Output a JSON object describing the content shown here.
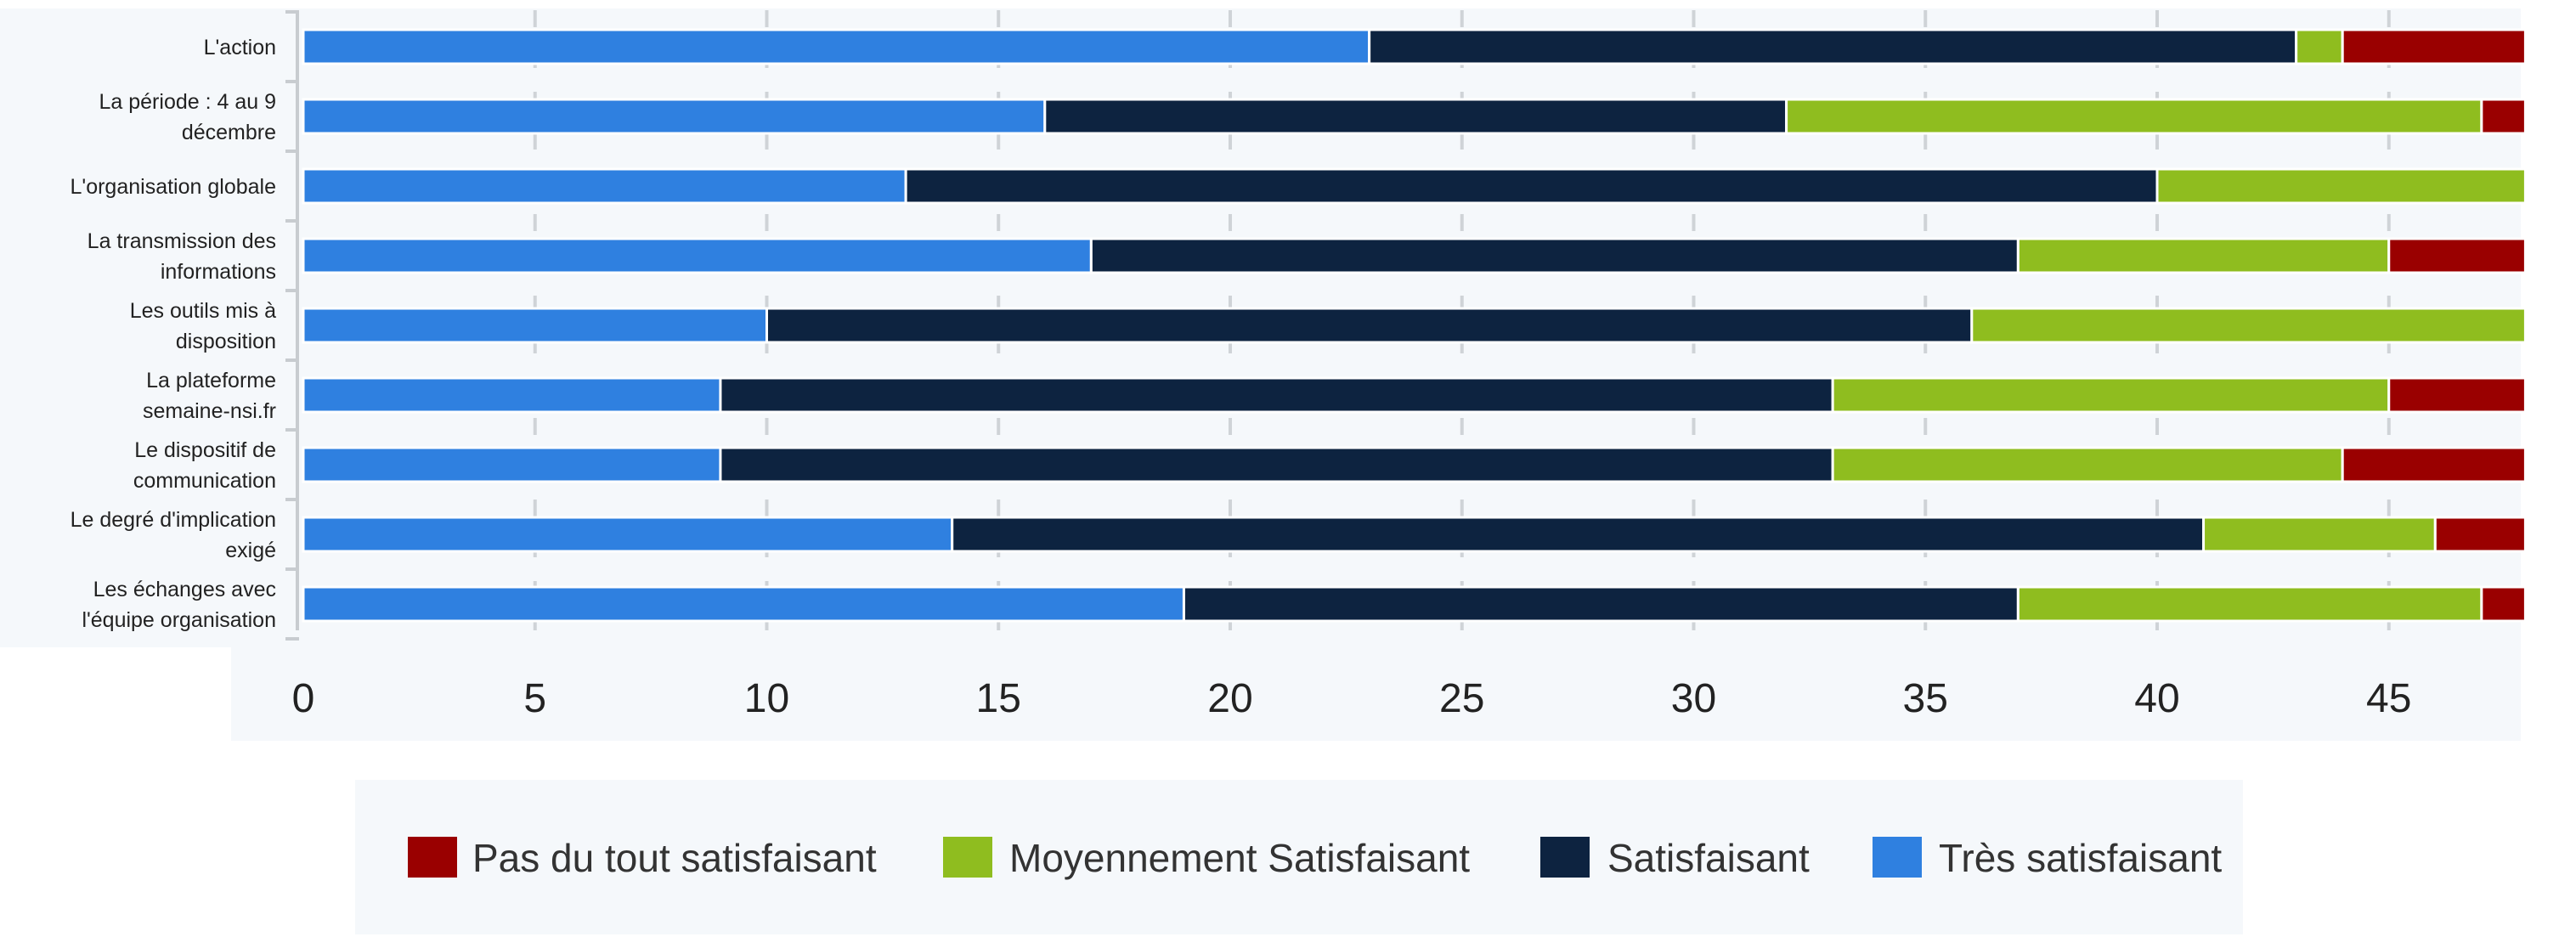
{
  "chart_data": {
    "type": "bar",
    "orientation": "horizontal",
    "stacked": true,
    "title": "",
    "xlabel": "",
    "ylabel": "",
    "xlim": [
      0,
      48
    ],
    "x_ticks": [
      0,
      5,
      10,
      15,
      20,
      25,
      30,
      35,
      40,
      45
    ],
    "grid": true,
    "legend_position": "bottom",
    "categories": [
      [
        "L'action"
      ],
      [
        "La période : 4 au 9",
        "décembre"
      ],
      [
        "L'organisation globale"
      ],
      [
        "La transmission des",
        "informations"
      ],
      [
        "Les outils mis à",
        "disposition"
      ],
      [
        "La plateforme",
        "semaine-nsi.fr"
      ],
      [
        "Le dispositif de",
        "communication"
      ],
      [
        "Le degré d'implication",
        "exigé"
      ],
      [
        "Les échanges avec",
        "l'équipe organisation"
      ]
    ],
    "series": [
      {
        "name": "Très satisfaisant",
        "color": "#2f80e0",
        "values": [
          23,
          16,
          13,
          17,
          10,
          9,
          9,
          14,
          19
        ]
      },
      {
        "name": "Satisfaisant",
        "color": "#0d2340",
        "values": [
          20,
          16,
          27,
          20,
          26,
          24,
          24,
          27,
          18
        ]
      },
      {
        "name": "Moyennement Satisfaisant",
        "color": "#8fbd1f",
        "values": [
          1,
          15,
          8,
          8,
          12,
          12,
          11,
          5,
          10
        ]
      },
      {
        "name": "Pas du tout satisfaisant",
        "color": "#9a0000",
        "values": [
          4,
          1,
          0,
          3,
          0,
          3,
          4,
          2,
          1
        ]
      }
    ],
    "legend_order": [
      "Pas du tout satisfaisant",
      "Moyennement Satisfaisant",
      "Satisfaisant",
      "Très satisfaisant"
    ]
  }
}
